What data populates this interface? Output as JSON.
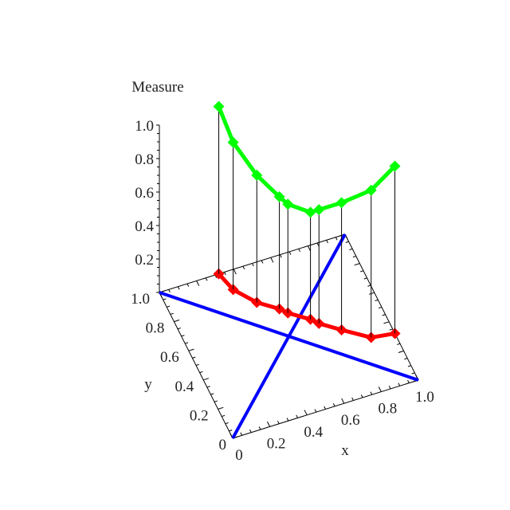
{
  "chart_data": {
    "type": "scatter3d",
    "title": "",
    "xlabel": "x",
    "ylabel": "y",
    "zlabel": "Measure",
    "xlim": [
      0,
      1
    ],
    "ylim": [
      0,
      1
    ],
    "zlim": [
      0,
      1
    ],
    "x_ticks": [
      "0",
      "0.2",
      "0.4",
      "0.6",
      "0.8",
      "1.0"
    ],
    "y_ticks": [
      "0",
      "0.2",
      "0.4",
      "0.6",
      "0.8",
      "1.0"
    ],
    "z_ticks": [
      "0.2",
      "0.4",
      "0.6",
      "0.8",
      "1.0"
    ],
    "grid": false,
    "points": [
      {
        "x": 0.32,
        "y": 1.0,
        "measure": 1.0
      },
      {
        "x": 0.35,
        "y": 0.88,
        "measure": 0.88
      },
      {
        "x": 0.43,
        "y": 0.76,
        "measure": 0.76
      },
      {
        "x": 0.52,
        "y": 0.68,
        "measure": 0.67
      },
      {
        "x": 0.55,
        "y": 0.64,
        "measure": 0.65
      },
      {
        "x": 0.64,
        "y": 0.56,
        "measure": 0.64
      },
      {
        "x": 0.67,
        "y": 0.52,
        "measure": 0.68
      },
      {
        "x": 0.76,
        "y": 0.44,
        "measure": 0.76
      },
      {
        "x": 0.88,
        "y": 0.34,
        "measure": 0.88
      },
      {
        "x": 1.0,
        "y": 0.32,
        "measure": 1.0
      }
    ],
    "reference_lines": [
      {
        "from": [
          0,
          0
        ],
        "to": [
          1,
          1
        ]
      },
      {
        "from": [
          0,
          1
        ],
        "to": [
          1,
          0
        ]
      }
    ],
    "colors": {
      "measure_series": "#00ff00",
      "base_series": "#ff0000",
      "reference_lines": "#0000ff",
      "stems": "#000000",
      "axes": "#000000"
    }
  }
}
